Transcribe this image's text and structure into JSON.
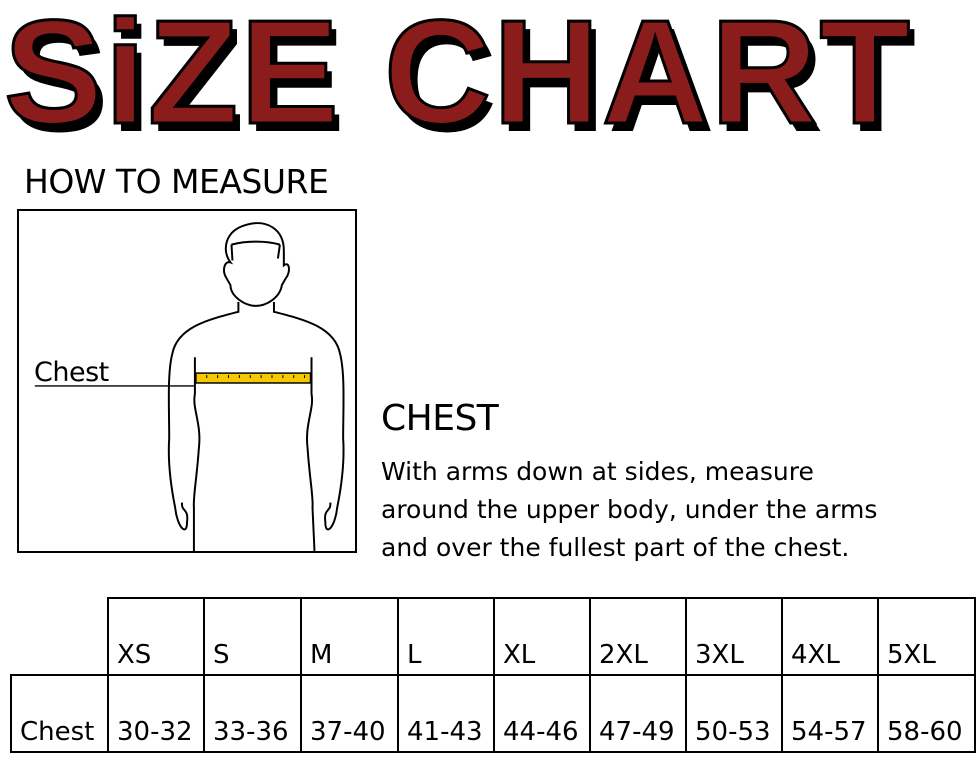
{
  "title": "SiZE CHART",
  "how_to_measure": "HOW TO MEASURE",
  "figure": {
    "chest_label": "Chest",
    "tape_color": "#f5c800"
  },
  "instructions": {
    "heading": "CHEST",
    "lines": [
      "With arms down at sides, measure",
      "around the upper body, under the arms",
      "and over the fullest part of the chest."
    ]
  },
  "table": {
    "sizes": [
      "XS",
      "S",
      "M",
      "L",
      "XL",
      "2XL",
      "3XL",
      "4XL",
      "5XL"
    ],
    "row_label": "Chest",
    "chest": [
      "30-32",
      "33-36",
      "37-40",
      "41-43",
      "44-46",
      "47-49",
      "50-53",
      "54-57",
      "58-60"
    ]
  },
  "colors": {
    "title": "#8b1c1c"
  }
}
